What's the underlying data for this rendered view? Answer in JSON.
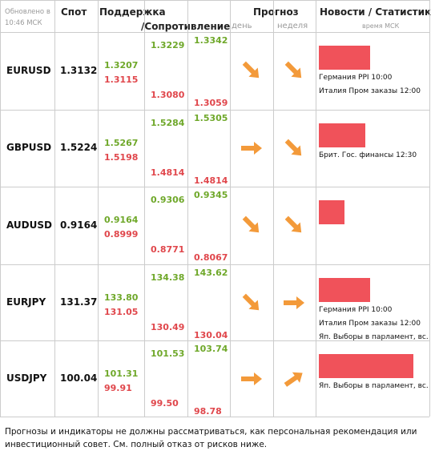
{
  "header": {
    "updated": "Обновлено в 10:46 МСК",
    "spot": "Спот",
    "support": "Поддержка",
    "resistance": "/Сопротивление",
    "forecast": "Прогноз",
    "day": "день",
    "week": "неделя",
    "news": "Новости / Статистика",
    "time": "время МСК"
  },
  "rows": [
    {
      "pair": "EURUSD",
      "spot": "1.3132",
      "levels": [
        [
          "1.3207",
          "1.3115"
        ],
        [
          "1.3229",
          "1.3080"
        ],
        [
          "1.3342",
          "1.3059"
        ]
      ],
      "news": [
        "Германия PPI 10:00",
        "Италия Пром заказы 12:00"
      ]
    },
    {
      "pair": "GBPUSD",
      "spot": "1.5224",
      "levels": [
        [
          "1.5267",
          "1.5198"
        ],
        [
          "1.5284",
          "1.4814"
        ],
        [
          "1.5305",
          "1.4814"
        ]
      ],
      "news": [
        "Брит. Гос. финансы 12:30"
      ]
    },
    {
      "pair": "AUDUSD",
      "spot": "0.9164",
      "levels": [
        [
          "0.9164",
          "0.8999"
        ],
        [
          "0.9306",
          "0.8771"
        ],
        [
          "0.9345",
          "0.8067"
        ]
      ],
      "news": []
    },
    {
      "pair": "EURJPY",
      "spot": "131.37",
      "levels": [
        [
          "133.80",
          "131.05"
        ],
        [
          "134.38",
          "130.49"
        ],
        [
          "143.62",
          "130.04"
        ]
      ],
      "news": [
        "Германия PPI 10:00",
        "Италия Пром заказы 12:00",
        "Яп. Выборы в парламент, вс."
      ]
    },
    {
      "pair": "USDJPY",
      "spot": "100.04",
      "levels": [
        [
          "101.31",
          "99.91"
        ],
        [
          "101.53",
          "99.50"
        ],
        [
          "103.74",
          "98.78"
        ]
      ],
      "news": [
        "Яп. Выборы в парламент, вс."
      ]
    }
  ],
  "footer": "Прогнозы и индикаторы не должны рассматриваться, как персональная рекомендация или инвестиционный совет. См. полный отказ от рисков ниже."
}
